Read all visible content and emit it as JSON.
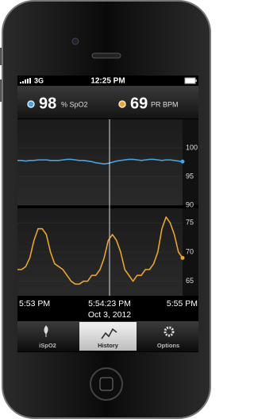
{
  "status_bar": {
    "network": "3G",
    "time": "12:25 PM"
  },
  "readings": {
    "spo2": {
      "value": 98,
      "unit": "% SpO2"
    },
    "pr": {
      "value": 69,
      "unit": "PR BPM"
    }
  },
  "charts": [
    {
      "type": "line",
      "color": "#4aa3df",
      "values": [
        97.8,
        97.8,
        97.7,
        97.8,
        97.8,
        97.9,
        97.9,
        97.9,
        97.8,
        97.8,
        97.8,
        97.9,
        98,
        98,
        97.9,
        97.8,
        97.8,
        97.7,
        97.6,
        97.4,
        97.3,
        97.2,
        97.3,
        97.5,
        97.7,
        97.8,
        97.9,
        98,
        98,
        97.9,
        97.8,
        97.9,
        98,
        98,
        97.9,
        97.8,
        97.9,
        97.9,
        97.8,
        97.7,
        97.6
      ],
      "ylim": [
        90,
        105
      ],
      "yticks": [
        90,
        95,
        100
      ]
    },
    {
      "type": "line",
      "color": "#e8a530",
      "values": [
        67,
        67,
        67.5,
        69,
        72,
        74,
        74,
        73,
        70,
        68,
        67.5,
        67,
        66,
        65,
        64.5,
        64.5,
        65,
        65,
        66,
        66,
        67,
        69,
        72,
        73,
        72,
        70,
        67,
        66,
        65,
        66,
        66,
        67,
        67,
        68,
        70,
        74,
        76,
        75,
        73,
        70,
        69
      ],
      "ylim": [
        62.5,
        77.5
      ],
      "yticks": [
        65,
        70,
        75
      ]
    }
  ],
  "time_axis": {
    "start": "5:53 PM",
    "cursor": "5:54:23 PM",
    "end": "5:55 PM",
    "date": "Oct 3, 2012"
  },
  "tabs": [
    {
      "label": "iSpO2"
    },
    {
      "label": "History",
      "selected": true
    },
    {
      "label": "Options"
    }
  ]
}
